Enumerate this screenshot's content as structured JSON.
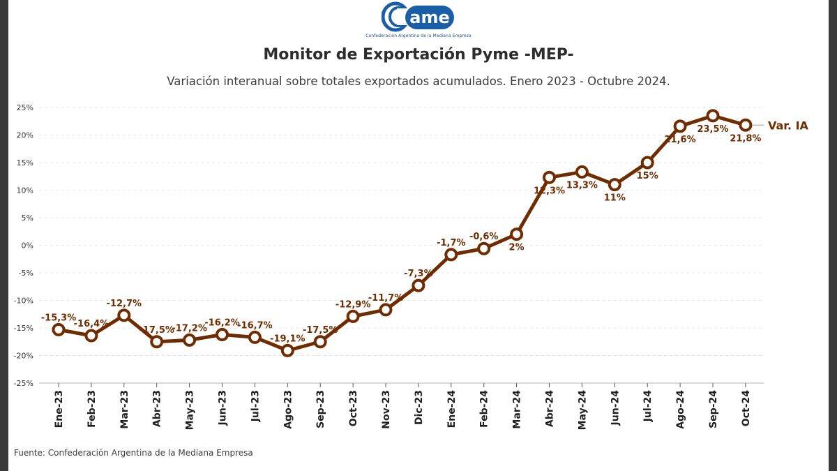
{
  "logo": {
    "text": "came",
    "caption": "Confederación Argentina de la Mediana Empresa",
    "color": "#1a5ea8"
  },
  "header": {
    "title": "Monitor de Exportación Pyme -MEP-",
    "subtitle": "Variación interanual sobre totales exportados acumulados. Enero 2023 - Octubre 2024."
  },
  "footer": {
    "source": "Fuente: Confederación Argentina de la Mediana Empresa"
  },
  "colors": {
    "line": "#6e2c00",
    "grid": "#e6e6e6",
    "axis": "#d9d9d9"
  },
  "chart_data": {
    "type": "line",
    "title": "Monitor de Exportación Pyme -MEP-",
    "subtitle": "Variación interanual sobre totales exportados acumulados. Enero 2023 - Octubre 2024.",
    "xlabel": "",
    "ylabel": "",
    "ylim": [
      -25,
      25
    ],
    "yticks": [
      25,
      20,
      15,
      10,
      5,
      0,
      -5,
      -10,
      -15,
      -20,
      -25
    ],
    "ytick_labels": [
      "25%",
      "20%",
      "15%",
      "10%",
      "5%",
      "0%",
      "-5%",
      "-10%",
      "-15%",
      "-20%",
      "-25%"
    ],
    "grid": true,
    "categories": [
      "Ene-23",
      "Feb-23",
      "Mar-23",
      "Abr-23",
      "May-23",
      "Jun-23",
      "Jul-23",
      "Ago-23",
      "Sep-23",
      "Oct-23",
      "Nov-23",
      "Dic-23",
      "Ene-24",
      "Feb-24",
      "Mar-24",
      "Abr-24",
      "May-24",
      "Jun-24",
      "Jul-24",
      "Ago-24",
      "Sep-24",
      "Oct-24"
    ],
    "series": [
      {
        "name": "Var. IA",
        "values": [
          -15.3,
          -16.4,
          -12.7,
          -17.5,
          -17.2,
          -16.2,
          -16.7,
          -19.1,
          -17.5,
          -12.9,
          -11.7,
          -7.3,
          -1.7,
          -0.6,
          2,
          12.3,
          13.3,
          11,
          15,
          21.6,
          23.5,
          21.8
        ],
        "labels": [
          "-15,3%",
          "-16,4%",
          "-12,7%",
          "-17,5%",
          "-17,2%",
          "-16,2%",
          "-16,7%",
          "-19,1%",
          "-17,5%",
          "-12,9%",
          "-11,7%",
          "-7,3%",
          "-1,7%",
          "-0,6%",
          "2%",
          "12,3%",
          "13,3%",
          "11%",
          "15%",
          "21,6%",
          "23,5%",
          "21,8%"
        ],
        "label_side": [
          "above",
          "above",
          "above",
          "above",
          "above",
          "above",
          "above",
          "above",
          "above",
          "above",
          "above",
          "above",
          "above",
          "above",
          "below",
          "below",
          "below",
          "below",
          "below",
          "below",
          "below",
          "below"
        ]
      }
    ]
  }
}
